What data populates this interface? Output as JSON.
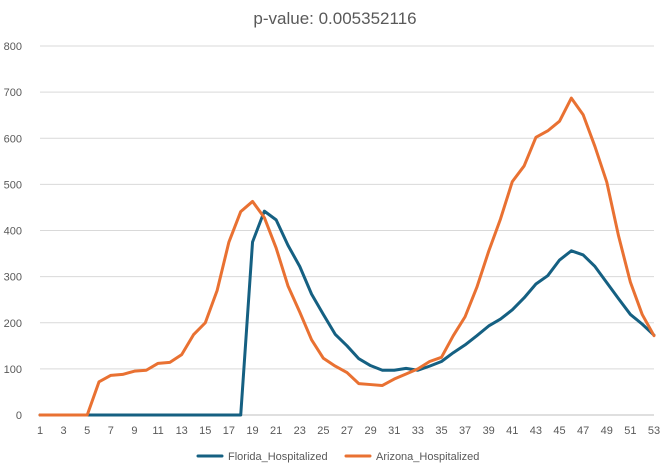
{
  "chart_data": {
    "type": "line",
    "title": "p-value: 0.005352116",
    "xlabel": "",
    "ylabel": "",
    "ylim": [
      0,
      800
    ],
    "yticks": [
      0,
      100,
      200,
      300,
      400,
      500,
      600,
      700,
      800
    ],
    "xticks": [
      1,
      3,
      5,
      7,
      9,
      11,
      13,
      15,
      17,
      19,
      21,
      23,
      25,
      27,
      29,
      31,
      33,
      35,
      37,
      39,
      41,
      43,
      45,
      47,
      49,
      51,
      53
    ],
    "x": [
      1,
      2,
      3,
      4,
      5,
      6,
      7,
      8,
      9,
      10,
      11,
      12,
      13,
      14,
      15,
      16,
      17,
      18,
      19,
      20,
      21,
      22,
      23,
      24,
      25,
      26,
      27,
      28,
      29,
      30,
      31,
      32,
      33,
      34,
      35,
      36,
      37,
      38,
      39,
      40,
      41,
      42,
      43,
      44,
      45,
      46,
      47,
      48,
      49,
      50,
      51,
      52,
      53
    ],
    "grid": true,
    "legend_position": "bottom",
    "series": [
      {
        "name": "Florida_Hospitalized",
        "color": "#156082",
        "values": [
          0,
          0,
          0,
          0,
          0,
          0,
          0,
          0,
          0,
          0,
          0,
          0,
          0,
          0,
          0,
          0,
          0,
          0,
          375,
          442,
          423,
          368,
          322,
          262,
          218,
          175,
          150,
          122,
          107,
          97,
          97,
          101,
          97,
          106,
          116,
          135,
          152,
          172,
          193,
          208,
          228,
          254,
          284,
          302,
          336,
          356,
          347,
          322,
          287,
          252,
          218,
          197,
          173
        ]
      },
      {
        "name": "Arizona_Hospitalized",
        "color": "#E97132",
        "values": [
          0,
          0,
          0,
          0,
          0,
          72,
          86,
          88,
          95,
          97,
          112,
          114,
          131,
          174,
          200,
          270,
          375,
          441,
          463,
          428,
          362,
          280,
          223,
          163,
          123,
          106,
          92,
          68,
          66,
          64,
          78,
          89,
          100,
          116,
          125,
          172,
          213,
          277,
          355,
          425,
          506,
          540,
          602,
          616,
          637,
          687,
          651,
          582,
          505,
          388,
          288,
          218,
          172
        ]
      }
    ]
  }
}
